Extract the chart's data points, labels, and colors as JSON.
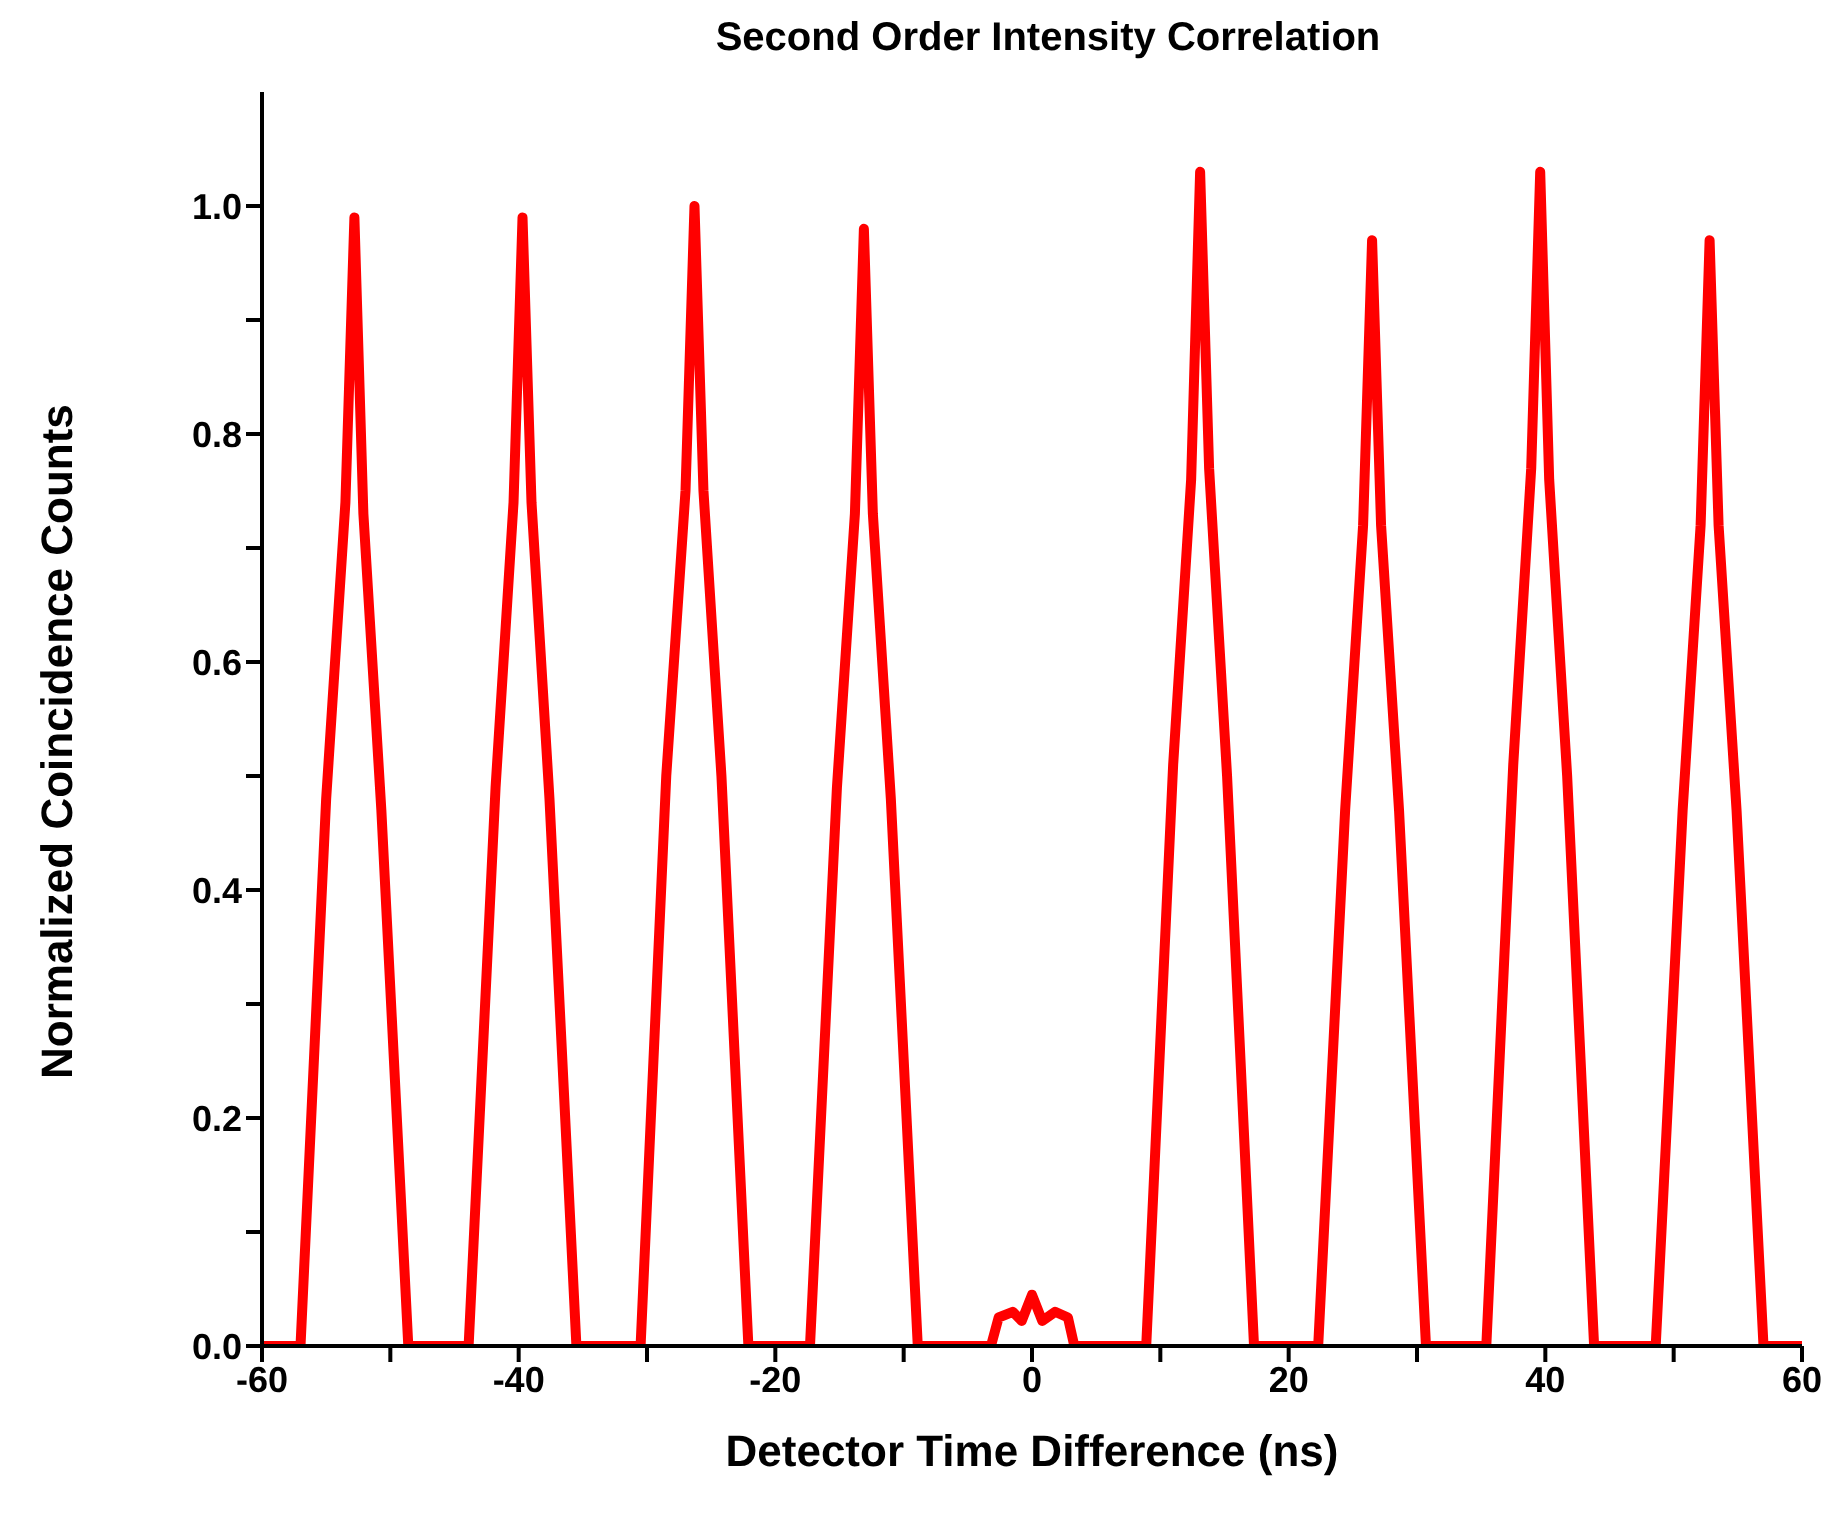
{
  "chart_data": {
    "type": "line",
    "title": "Second Order Intensity Correlation",
    "xlabel": "Detector Time Difference (ns)",
    "ylabel": "Normalized Coincidence Counts",
    "x": [
      -60,
      -57,
      -55,
      -53.5,
      -52.8,
      -52.1,
      -50.7,
      -48.6,
      -43.9,
      -41.8,
      -40.4,
      -39.7,
      -39,
      -37.6,
      -35.5,
      -30.5,
      -28.5,
      -27,
      -26.3,
      -25.6,
      -24.2,
      -22.1,
      -17.3,
      -15.2,
      -13.8,
      -13.1,
      -12.4,
      -11,
      -8.9,
      -3.2,
      -2.6,
      -1.5,
      -0.8,
      0,
      0.8,
      1.8,
      2.8,
      3.3,
      8.9,
      11,
      12.4,
      13.1,
      13.8,
      15.2,
      17.3,
      22.3,
      24.4,
      25.8,
      26.5,
      27.2,
      28.6,
      30.7,
      35.4,
      37.5,
      38.9,
      39.6,
      40.3,
      41.7,
      43.8,
      48.6,
      50.7,
      52.1,
      52.8,
      53.5,
      54.9,
      57,
      60
    ],
    "series": [
      {
        "color": "#ff0000",
        "values": [
          0,
          0,
          0.48,
          0.74,
          0.99,
          0.73,
          0.47,
          0,
          0,
          0.49,
          0.74,
          0.99,
          0.74,
          0.48,
          0,
          0,
          0.5,
          0.75,
          1.0,
          0.75,
          0.5,
          0,
          0,
          0.49,
          0.73,
          0.98,
          0.73,
          0.48,
          0,
          0,
          0.025,
          0.03,
          0.022,
          0.045,
          0.022,
          0.03,
          0.025,
          0,
          0,
          0.51,
          0.76,
          1.03,
          0.77,
          0.5,
          0,
          0,
          0.47,
          0.72,
          0.97,
          0.72,
          0.47,
          0,
          0,
          0.51,
          0.77,
          1.03,
          0.76,
          0.5,
          0,
          0,
          0.47,
          0.72,
          0.97,
          0.72,
          0.47,
          0,
          0
        ]
      }
    ],
    "xlim": [
      -60,
      60
    ],
    "xticks": [
      -60,
      {
        "value": -50,
        "label": null
      },
      -40,
      {
        "value": -30,
        "label": null
      },
      -20,
      {
        "value": -10,
        "label": null
      },
      0,
      {
        "value": 10,
        "label": null
      },
      20,
      {
        "value": 30,
        "label": null
      },
      40,
      {
        "value": 50,
        "label": null
      },
      60
    ],
    "ylim": [
      0,
      1.1
    ],
    "yticks": [
      {
        "value": 0,
        "label": "0.0"
      },
      {
        "value": 0.1,
        "label": null
      },
      0.2,
      {
        "value": 0.3,
        "label": null
      },
      0.4,
      {
        "value": 0.5,
        "label": null
      },
      0.6,
      {
        "value": 0.7,
        "label": null
      },
      0.8,
      {
        "value": 0.9,
        "label": null
      },
      {
        "value": 1,
        "label": "1.0"
      }
    ],
    "grid": false,
    "legend": false,
    "marker": "none",
    "line_style": "solid"
  }
}
